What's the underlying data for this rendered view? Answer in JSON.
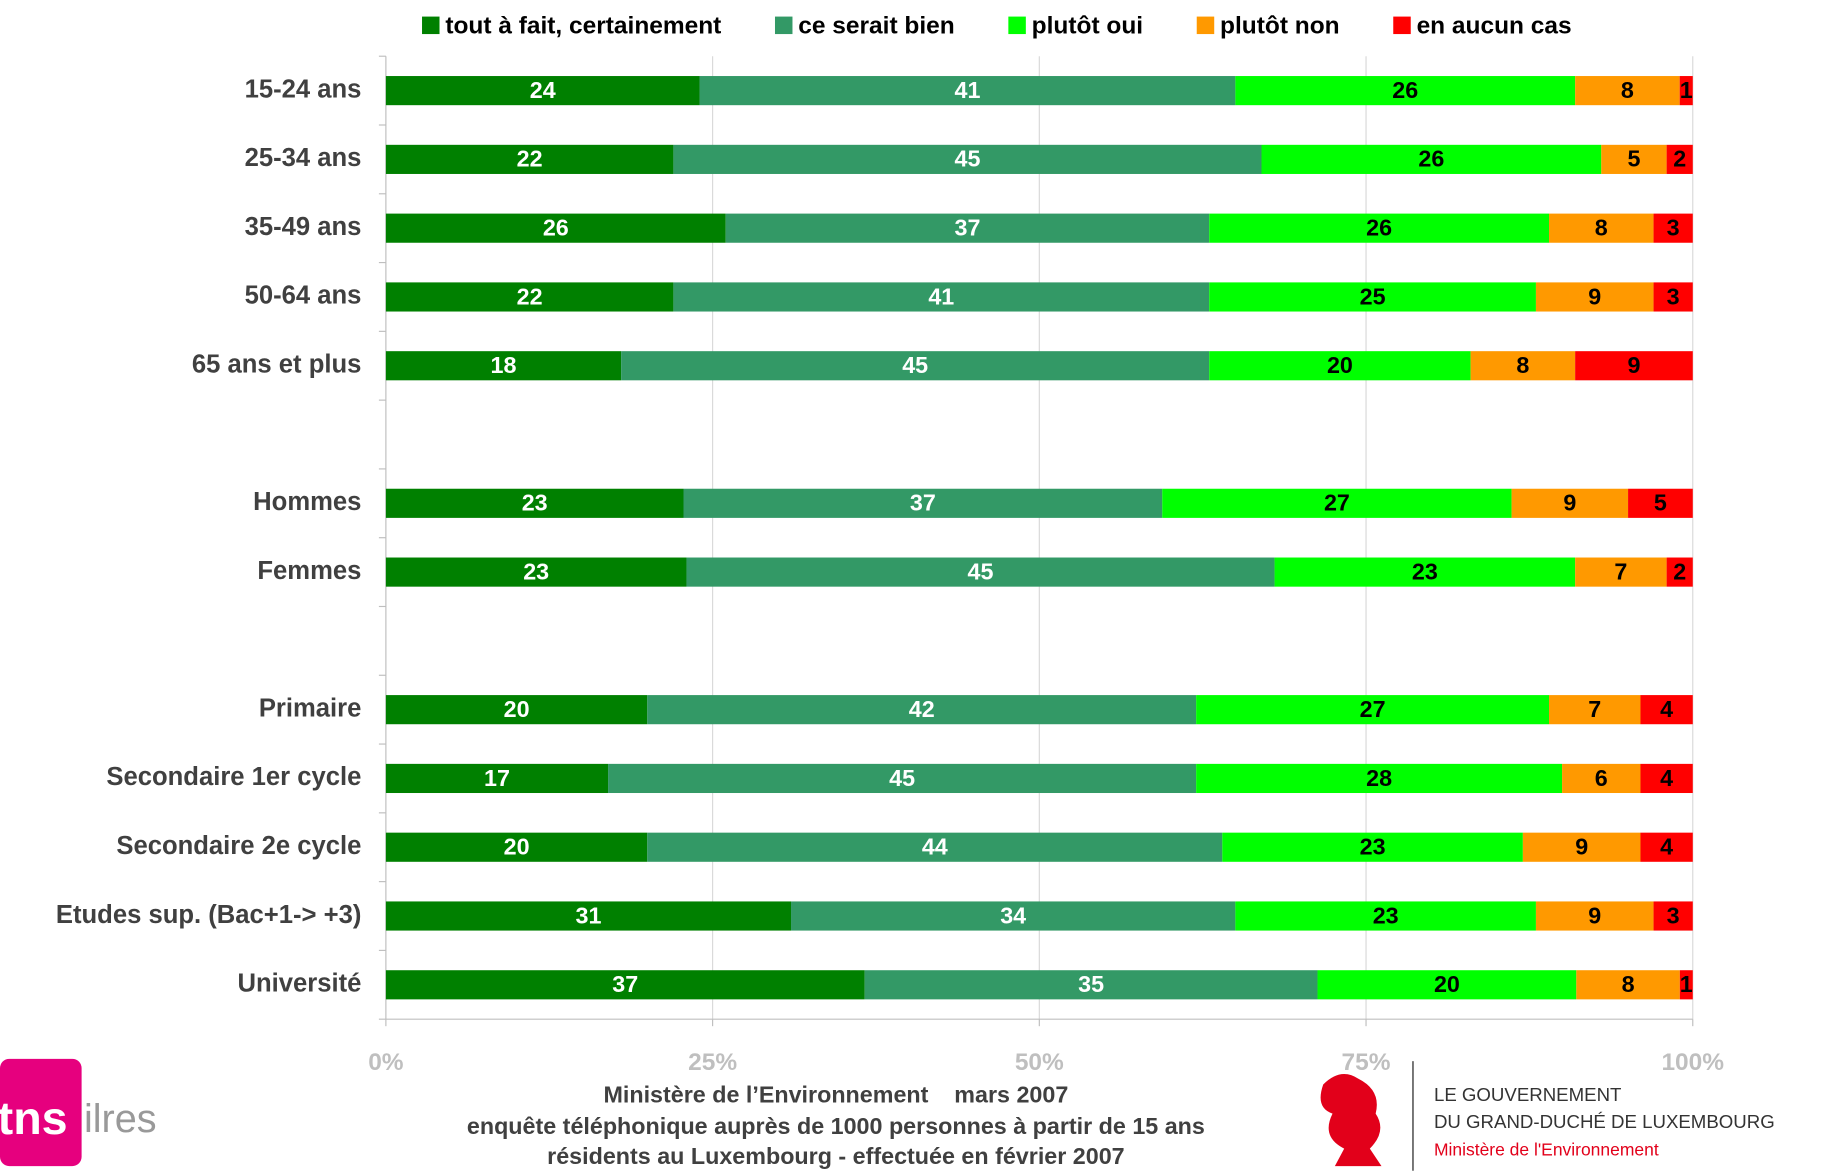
{
  "chart_data": {
    "type": "stacked-bar-100",
    "categories": [
      "15-24 ans",
      "25-34 ans",
      "35-49 ans",
      "50-64 ans",
      "65 ans et plus",
      null,
      "Hommes",
      "Femmes",
      null,
      "Primaire",
      "Secondaire 1er cycle",
      "Secondaire 2e cycle",
      "Etudes sup. (Bac+1-> +3)",
      "Université"
    ],
    "series": [
      {
        "name": "tout à fait, certainement",
        "color": "#008000",
        "label_color": "#ffffff",
        "values": [
          24,
          22,
          26,
          22,
          18,
          null,
          23,
          23,
          null,
          20,
          17,
          20,
          31,
          37
        ]
      },
      {
        "name": "ce serait bien",
        "color": "#339966",
        "label_color": "#ffffff",
        "values": [
          41,
          45,
          37,
          41,
          45,
          null,
          37,
          45,
          null,
          42,
          45,
          44,
          34,
          35
        ]
      },
      {
        "name": "plutôt oui",
        "color": "#00ff00",
        "label_color": "#000000",
        "values": [
          26,
          26,
          26,
          25,
          20,
          null,
          27,
          23,
          null,
          27,
          28,
          23,
          23,
          20
        ]
      },
      {
        "name": "plutôt non",
        "color": "#ff9900",
        "label_color": "#000000",
        "values": [
          8,
          5,
          8,
          9,
          8,
          null,
          9,
          7,
          null,
          7,
          6,
          9,
          9,
          8
        ]
      },
      {
        "name": "en aucun cas",
        "color": "#ff0000",
        "label_color": "#000000",
        "values": [
          1,
          2,
          3,
          3,
          9,
          null,
          5,
          2,
          null,
          4,
          4,
          4,
          3,
          1
        ]
      }
    ],
    "xlim": [
      0,
      100
    ],
    "xticks": [
      {
        "value": 0,
        "label": "0%"
      },
      {
        "value": 25,
        "label": "25%"
      },
      {
        "value": 50,
        "label": "50%"
      },
      {
        "value": 75,
        "label": "75%"
      },
      {
        "value": 100,
        "label": "100%"
      }
    ],
    "grid": true,
    "legend": "top"
  },
  "footer": [
    "Ministère de l’Environnement    mars 2007",
    "enquête téléphonique auprès de 1000 personnes à partir de 15 ans",
    "résidents au Luxembourg - effectuée en  février 2007"
  ],
  "logos": {
    "tns": "tns",
    "ilres": "ilres",
    "gov": [
      "LE GOUVERNEMENT",
      "DU GRAND-DUCHÉ DE LUXEMBOURG"
    ],
    "ministry": "Ministère de l'Environnement"
  }
}
